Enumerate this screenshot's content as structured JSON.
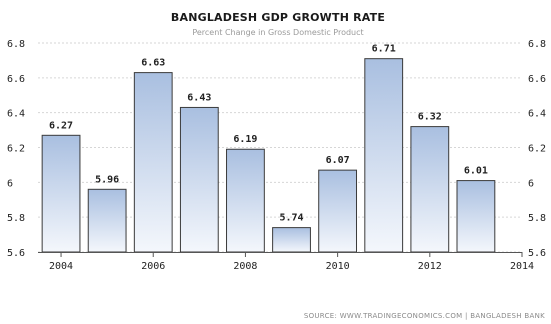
{
  "chart_data": {
    "type": "bar",
    "title": "BANGLADESH GDP GROWTH RATE",
    "subtitle": "Percent Change in Gross Domestic Product",
    "source": "SOURCE: WWW.TRADINGECONOMICS.COM | BANGLADESH BANK",
    "x": [
      2004,
      2005,
      2006,
      2007,
      2008,
      2009,
      2010,
      2011,
      2012,
      2013
    ],
    "values": [
      6.27,
      5.96,
      6.63,
      6.43,
      6.19,
      5.74,
      6.07,
      6.71,
      6.32,
      6.01
    ],
    "data_labels": [
      "6.27",
      "5.96",
      "6.63",
      "6.43",
      "6.19",
      "5.74",
      "6.07",
      "6.71",
      "6.32",
      "6.01"
    ],
    "xlim": [
      2003.5,
      2014
    ],
    "xticks": [
      "2004",
      "2006",
      "2008",
      "2010",
      "2012",
      "2014"
    ],
    "xtick_values": [
      2004,
      2006,
      2008,
      2010,
      2012,
      2014
    ],
    "ylim": [
      5.6,
      6.8
    ],
    "yticks": [
      "6.8",
      "6.6",
      "6.4",
      "6.2",
      "6",
      "5.8",
      "5.6"
    ],
    "ytick_values": [
      6.8,
      6.6,
      6.4,
      6.2,
      6.0,
      5.8,
      5.6
    ],
    "grid": true,
    "y_axis_both_sides": true,
    "xlabel": "",
    "ylabel": "",
    "colors": {
      "bar_top": "#a9bfe0",
      "bar_bottom": "#f4f7fc",
      "bar_border": "#3a3a3a"
    }
  }
}
